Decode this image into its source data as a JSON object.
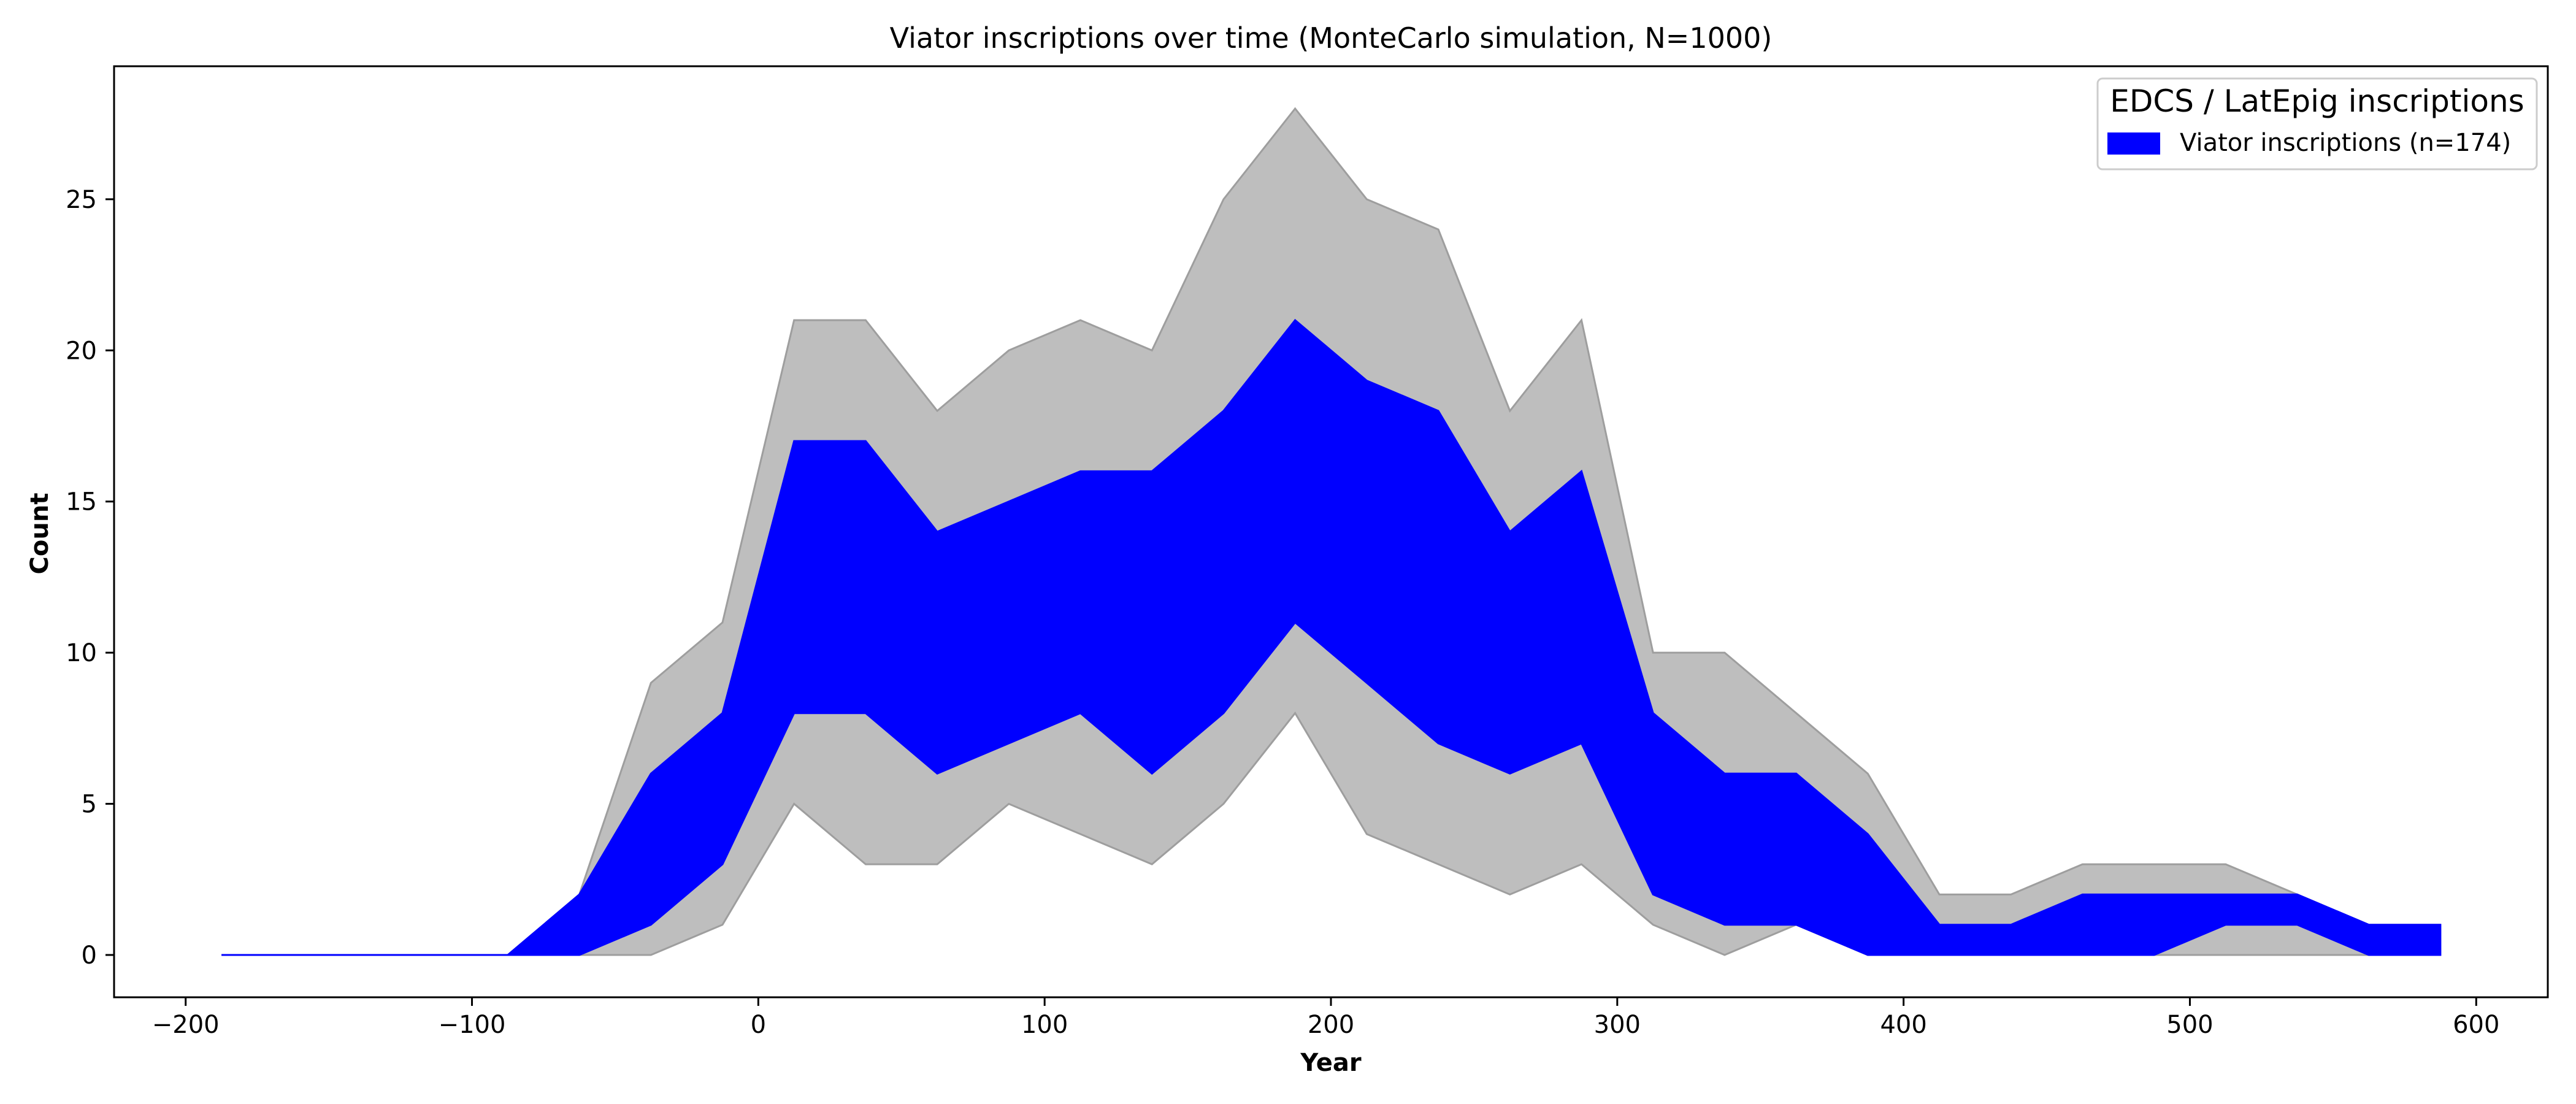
{
  "chart_data": {
    "type": "area",
    "title": "Viator inscriptions over time (MonteCarlo simulation, N=1000)",
    "xlabel": "Year",
    "ylabel": "Count",
    "xlim": [
      -225,
      625
    ],
    "ylim": [
      -1.4,
      29.4
    ],
    "xticks": [
      -200,
      -100,
      0,
      100,
      200,
      300,
      400,
      500,
      600
    ],
    "xtick_labels": [
      "−200",
      "−100",
      "0",
      "100",
      "200",
      "300",
      "400",
      "500",
      "600"
    ],
    "yticks": [
      0,
      5,
      10,
      15,
      20,
      25
    ],
    "ytick_labels": [
      "0",
      "5",
      "10",
      "15",
      "20",
      "25"
    ],
    "grid": false,
    "legend": {
      "title": "EDCS / LatEpig inscriptions",
      "placement": "top-right",
      "entries": [
        "Viator inscriptions (n=174)"
      ]
    },
    "x": [
      -187.5,
      -162.5,
      -137.5,
      -112.5,
      -87.5,
      -62.5,
      -37.5,
      -12.5,
      12.5,
      37.5,
      62.5,
      87.5,
      112.5,
      137.5,
      162.5,
      187.5,
      212.5,
      237.5,
      262.5,
      287.5,
      312.5,
      337.5,
      362.5,
      387.5,
      412.5,
      437.5,
      462.5,
      487.5,
      512.5,
      537.5,
      562.5,
      587.5
    ],
    "series": [
      {
        "role": "min-max range",
        "color": "#bebebe",
        "lower": [
          0,
          0,
          0,
          0,
          0,
          0,
          0,
          1,
          5,
          3,
          3,
          5,
          4,
          3,
          5,
          8,
          4,
          3,
          2,
          3,
          1,
          0,
          1,
          0,
          0,
          0,
          0,
          0,
          0,
          0,
          0,
          0
        ],
        "upper": [
          0,
          0,
          0,
          0,
          0,
          2,
          9,
          11,
          21,
          21,
          18,
          20,
          21,
          20,
          25,
          28,
          25,
          24,
          18,
          21,
          10,
          10,
          8,
          6,
          2,
          2,
          3,
          3,
          3,
          2,
          1,
          1
        ]
      },
      {
        "name": "Viator inscriptions (n=174)",
        "role": "percentile band",
        "color": "#0000ff",
        "lower": [
          0,
          0,
          0,
          0,
          0,
          0,
          1,
          3,
          8,
          8,
          6,
          7,
          8,
          6,
          8,
          11,
          9,
          7,
          6,
          7,
          2,
          1,
          1,
          0,
          0,
          0,
          0,
          0,
          1,
          1,
          0,
          0
        ],
        "upper": [
          0,
          0,
          0,
          0,
          0,
          2,
          6,
          8,
          17,
          17,
          14,
          15,
          16,
          16,
          18,
          21,
          19,
          18,
          14,
          16,
          8,
          6,
          6,
          4,
          1,
          1,
          2,
          2,
          2,
          2,
          1,
          1
        ]
      }
    ]
  }
}
